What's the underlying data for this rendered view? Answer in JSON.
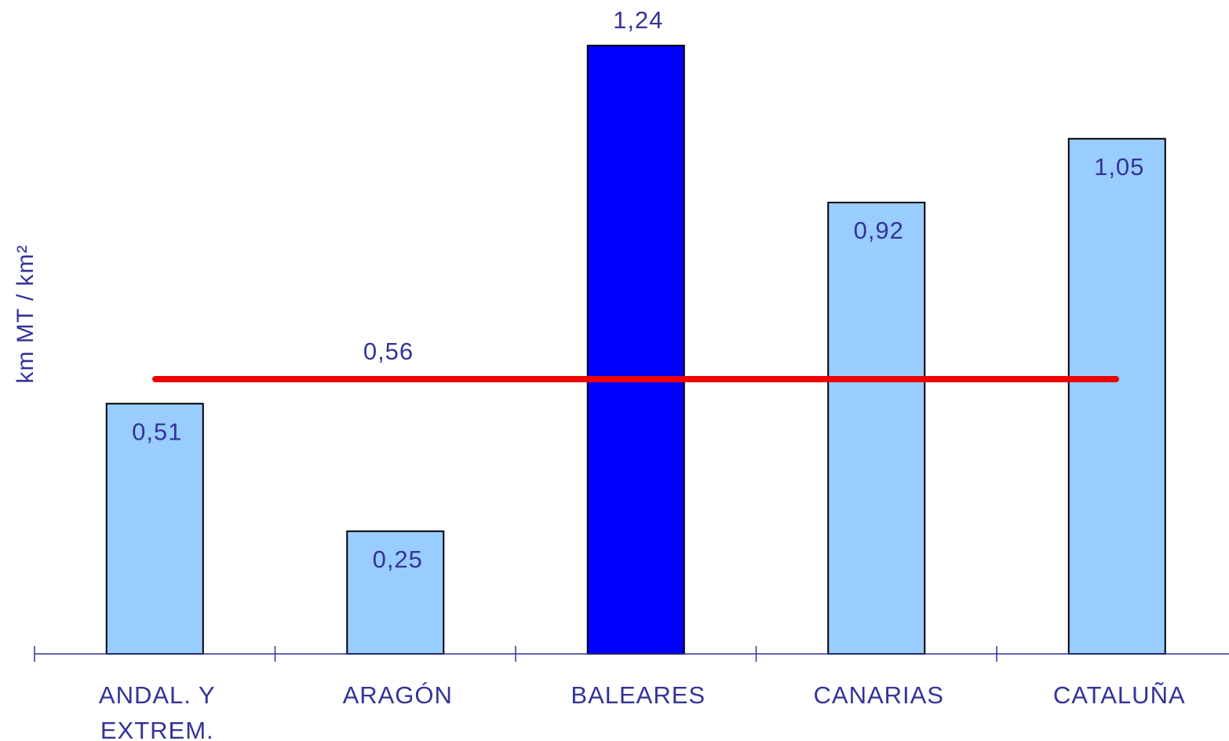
{
  "chart_data": {
    "type": "bar",
    "ylabel": "km MT / km²",
    "xlabel": "",
    "categories": [
      [
        "ANDAL. Y",
        "EXTREM."
      ],
      [
        "ARAGÓN"
      ],
      [
        "BALEARES"
      ],
      [
        "CANARIAS"
      ],
      [
        "CATALUÑA"
      ]
    ],
    "values": [
      0.51,
      0.25,
      1.24,
      0.92,
      1.05
    ],
    "value_labels": [
      "0,51",
      "0,25",
      "1,24",
      "0,92",
      "1,05"
    ],
    "highlight_index": 2,
    "average": {
      "value": 0.56,
      "label": "0,56",
      "color": "#ee0000"
    },
    "ylim": [
      0,
      1.24
    ],
    "grid": false,
    "legend": "none",
    "colors": {
      "bar": "#99ccff",
      "bar_highlight": "#0000ff",
      "bar_outline": "#000000",
      "text": "#333399",
      "axis": "#333399"
    }
  }
}
